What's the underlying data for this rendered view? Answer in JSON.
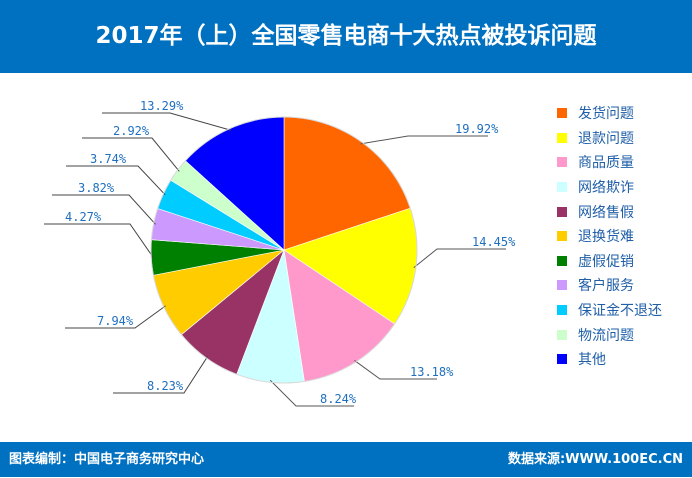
{
  "header": {
    "title": "2017年（上）全国零售电商十大热点被投诉问题",
    "background": "#0070c0"
  },
  "footer": {
    "left_text": "图表编制：中国电子商务研究中心",
    "right_text": "数据来源:WWW.100EC.CN"
  },
  "legend": {
    "items": [
      {
        "label": "发货问题",
        "color": "#ff6600"
      },
      {
        "label": "退款问题",
        "color": "#ffff00"
      },
      {
        "label": "商品质量",
        "color": "#ff99cc"
      },
      {
        "label": "网络欺诈",
        "color": "#ccffff"
      },
      {
        "label": "网络售假",
        "color": "#993366"
      },
      {
        "label": "退换货难",
        "color": "#ffcc00"
      },
      {
        "label": "虚假促销",
        "color": "#008000"
      },
      {
        "label": "客户服务",
        "color": "#cc99ff"
      },
      {
        "label": "保证金不退还",
        "color": "#00ccff"
      },
      {
        "label": "物流问题",
        "color": "#ccffcc"
      },
      {
        "label": "其他",
        "color": "#0000ff"
      }
    ]
  },
  "chart_data": {
    "type": "pie",
    "title": "2017年（上）全国零售电商十大热点被投诉问题",
    "categories": [
      "发货问题",
      "退款问题",
      "商品质量",
      "网络欺诈",
      "网络售假",
      "退换货难",
      "虚假促销",
      "客户服务",
      "保证金不退还",
      "物流问题",
      "其他"
    ],
    "values": [
      19.92,
      14.45,
      13.18,
      8.24,
      8.23,
      7.94,
      4.27,
      3.82,
      3.74,
      2.92,
      13.29
    ],
    "labels": [
      "19.92%",
      "14.45%",
      "13.18%",
      "8.24%",
      "8.23%",
      "7.94%",
      "4.27%",
      "3.82%",
      "3.74%",
      "2.92%",
      "13.29%"
    ],
    "colors": [
      "#ff6600",
      "#ffff00",
      "#ff99cc",
      "#ccffff",
      "#993366",
      "#ffcc00",
      "#008000",
      "#cc99ff",
      "#00ccff",
      "#ccffcc",
      "#0000ff"
    ],
    "start_angle": "12 o'clock, clockwise",
    "legend_position": "right",
    "unit": "%"
  }
}
